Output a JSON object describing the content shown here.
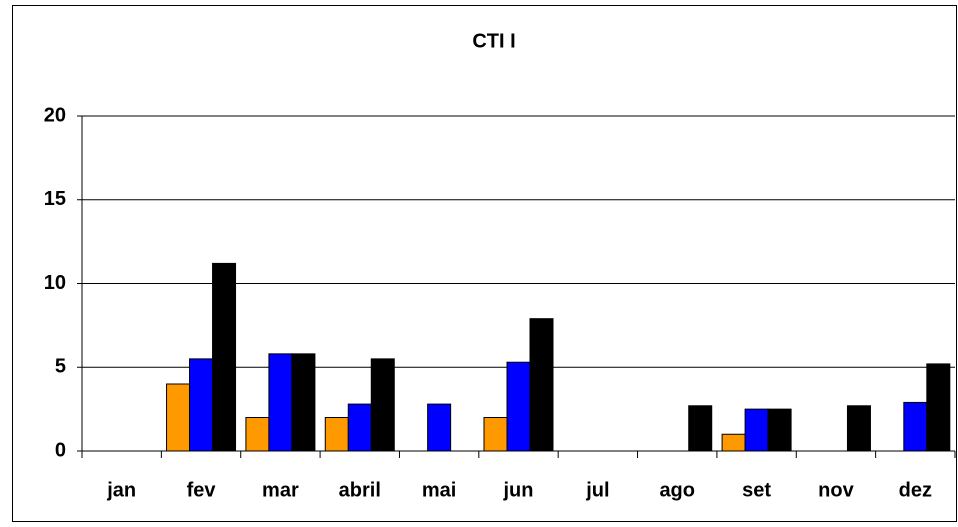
{
  "chart_data": {
    "type": "bar",
    "title": "CTI I",
    "categories": [
      "jan",
      "fev",
      "mar",
      "abril",
      "mai",
      "jun",
      "jul",
      "ago",
      "set",
      "nov",
      "dez"
    ],
    "series": [
      {
        "color": "#ff9900",
        "values": [
          null,
          4,
          2,
          2,
          null,
          2,
          null,
          null,
          1,
          null,
          null
        ]
      },
      {
        "color": "#0000ff",
        "values": [
          null,
          5.5,
          5.8,
          2.8,
          2.8,
          5.3,
          null,
          null,
          2.5,
          null,
          2.9
        ]
      },
      {
        "color": "#000000",
        "values": [
          null,
          11.2,
          5.8,
          5.5,
          null,
          7.9,
          null,
          2.7,
          2.5,
          2.7,
          5.2
        ]
      }
    ],
    "ylim": [
      0,
      20
    ],
    "yticks": [
      0,
      5,
      10,
      15,
      20
    ],
    "grid": true
  }
}
